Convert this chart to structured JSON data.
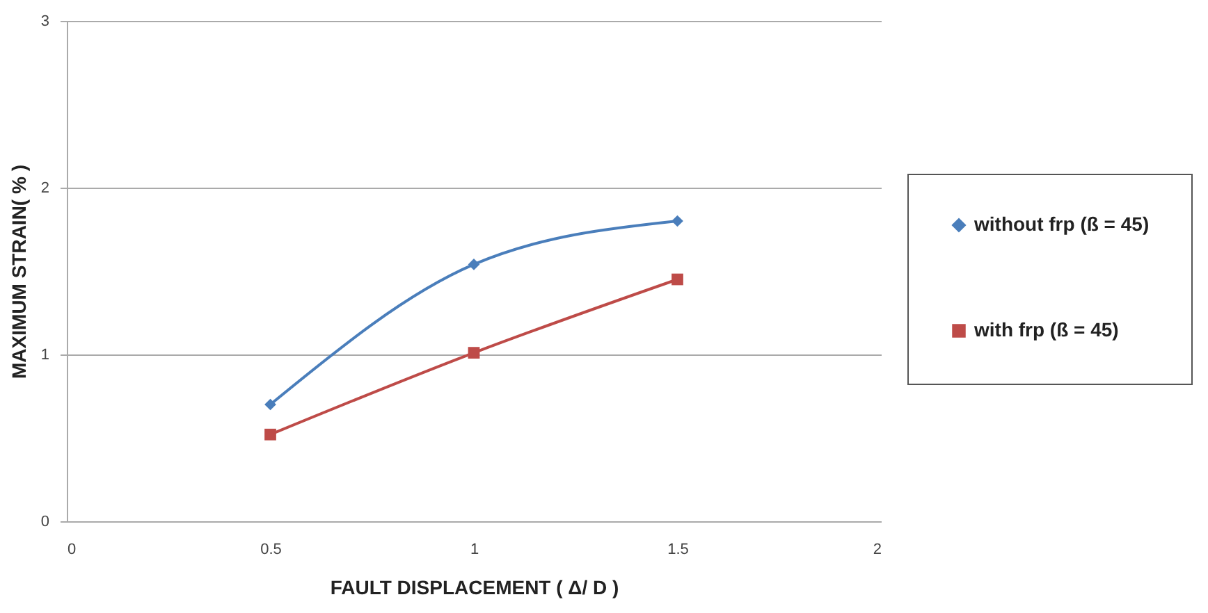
{
  "chart_data": {
    "type": "line",
    "x": [
      0.5,
      1,
      1.5
    ],
    "series": [
      {
        "name": "without frp (ß = 45)",
        "color": "#4a7ebb",
        "marker": "diamond",
        "values": [
          0.7,
          1.54,
          1.8
        ]
      },
      {
        "name": "with frp (ß = 45)",
        "color": "#be4b48",
        "marker": "square",
        "values": [
          0.52,
          1.01,
          1.45
        ]
      }
    ],
    "xlabel": "FAULT DISPLACEMENT ( Δ/ D )",
    "ylabel": "MAXIMUM STRAIN( % )",
    "xlim": [
      0,
      2
    ],
    "xticks": [
      0,
      0.5,
      1,
      1.5,
      2
    ],
    "ylim": [
      0,
      3
    ],
    "yticks": [
      0,
      1,
      2,
      3
    ],
    "grid": "y",
    "legend": "right",
    "line_style": "solid"
  }
}
